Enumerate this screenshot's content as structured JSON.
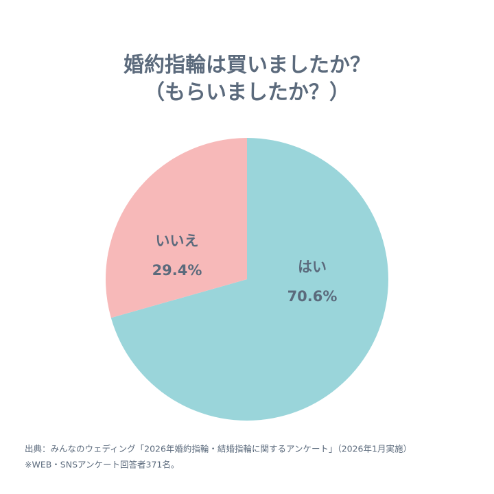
{
  "chart_data": {
    "type": "pie",
    "title": "婚約指輪は買いましたか？",
    "subtitle": "（もらいましたか？）",
    "categories": [
      "はい",
      "いいえ"
    ],
    "values": [
      70.6,
      29.4
    ],
    "value_labels": [
      "70.6%",
      "29.4%"
    ],
    "colors": [
      "#9ad5da",
      "#f7b9b9"
    ],
    "source": [
      "出典：みんなのウェディング「2026年婚約指輪・結婚指輪に関するアンケート」（2026年1月実施）",
      "※WEB・SNSアンケート回答者371名。"
    ]
  }
}
